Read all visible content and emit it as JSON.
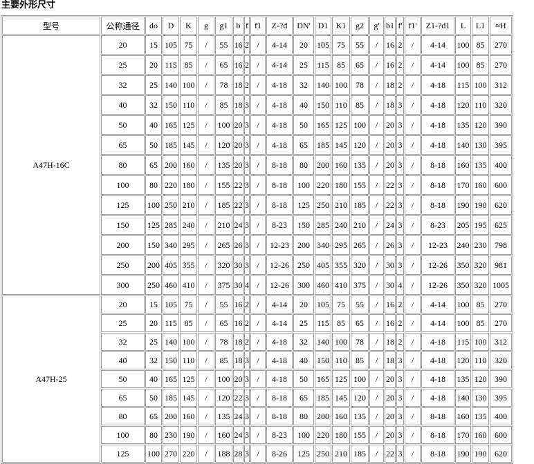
{
  "title": "主要外形尺寸",
  "table": {
    "headers": [
      "型号",
      "公称通径",
      "do",
      "D",
      "K",
      "g",
      "g1",
      "b",
      "f",
      "f1",
      "Z-?d",
      "DN'",
      "D1",
      "K1",
      "g2",
      "g'",
      "b1",
      "f'",
      "f1'",
      "Z1-?d1",
      "L",
      "L1",
      "≈H"
    ],
    "groups": [
      {
        "model": "A47H-16C",
        "rows": [
          [
            "20",
            "15",
            "105",
            "75",
            "/",
            "55",
            "16",
            "2",
            "/",
            "4-14",
            "20",
            "105",
            "75",
            "55",
            "/",
            "16",
            "2",
            "/",
            "4-14",
            "100",
            "85",
            "270"
          ],
          [
            "25",
            "20",
            "115",
            "85",
            "/",
            "65",
            "16",
            "2",
            "/",
            "4-14",
            "25",
            "115",
            "85",
            "65",
            "/",
            "16",
            "2",
            "/",
            "4-14",
            "100",
            "85",
            "270"
          ],
          [
            "32",
            "25",
            "140",
            "100",
            "/",
            "78",
            "18",
            "2",
            "/",
            "4-18",
            "32",
            "140",
            "100",
            "78",
            "/",
            "18",
            "2",
            "/",
            "4-18",
            "115",
            "100",
            "312"
          ],
          [
            "40",
            "32",
            "150",
            "110",
            "/",
            "85",
            "18",
            "3",
            "/",
            "4-18",
            "40",
            "150",
            "110",
            "85",
            "/",
            "18",
            "3",
            "/",
            "4-18",
            "120",
            "110",
            "320"
          ],
          [
            "50",
            "40",
            "165",
            "125",
            "/",
            "100",
            "20",
            "3",
            "/",
            "4-18",
            "50",
            "165",
            "125",
            "100",
            "/",
            "20",
            "3",
            "/",
            "4-18",
            "135",
            "120",
            "390"
          ],
          [
            "65",
            "50",
            "185",
            "145",
            "/",
            "120",
            "20",
            "3",
            "/",
            "4-18",
            "65",
            "185",
            "145",
            "120",
            "/",
            "20",
            "3",
            "/",
            "4-18",
            "140",
            "130",
            "395"
          ],
          [
            "80",
            "65",
            "200",
            "160",
            "/",
            "135",
            "20",
            "3",
            "/",
            "8-18",
            "80",
            "200",
            "160",
            "135",
            "/",
            "20",
            "3",
            "/",
            "8-18",
            "160",
            "135",
            "400"
          ],
          [
            "100",
            "80",
            "220",
            "180",
            "/",
            "155",
            "22",
            "3",
            "/",
            "8-18",
            "100",
            "220",
            "180",
            "155",
            "/",
            "22",
            "3",
            "/",
            "8-18",
            "170",
            "160",
            "600"
          ],
          [
            "125",
            "100",
            "250",
            "210",
            "/",
            "185",
            "22",
            "3",
            "/",
            "8-18",
            "125",
            "250",
            "210",
            "185",
            "/",
            "22",
            "3",
            "/",
            "8-18",
            "190",
            "190",
            "620"
          ],
          [
            "150",
            "125",
            "285",
            "240",
            "/",
            "210",
            "24",
            "3",
            "/",
            "8-23",
            "150",
            "285",
            "240",
            "210",
            "/",
            "24",
            "3",
            "/",
            "8-23",
            "205",
            "195",
            "625"
          ],
          [
            "200",
            "150",
            "340",
            "295",
            "/",
            "265",
            "26",
            "3",
            "/",
            "12-23",
            "200",
            "340",
            "295",
            "265",
            "/",
            "26",
            "3",
            "/",
            "12-23",
            "240",
            "230",
            "798"
          ],
          [
            "250",
            "200",
            "405",
            "355",
            "/",
            "320",
            "30",
            "3",
            "/",
            "12-26",
            "250",
            "405",
            "355",
            "320",
            "/",
            "30",
            "3",
            "/",
            "12-26",
            "350",
            "320",
            "981"
          ],
          [
            "300",
            "250",
            "460",
            "410",
            "/",
            "375",
            "30",
            "4",
            "/",
            "12-26",
            "300",
            "460",
            "410",
            "375",
            "/",
            "30",
            "4",
            "/",
            "12-26",
            "350",
            "320",
            "1005"
          ]
        ]
      },
      {
        "model": "A47H-25",
        "rows": [
          [
            "20",
            "15",
            "105",
            "75",
            "/",
            "55",
            "16",
            "2",
            "/",
            "4-14",
            "20",
            "105",
            "75",
            "55",
            "/",
            "16",
            "2",
            "/",
            "4-14",
            "100",
            "85",
            "270"
          ],
          [
            "25",
            "20",
            "115",
            "85",
            "/",
            "65",
            "16",
            "2",
            "/",
            "4-14",
            "25",
            "115",
            "85",
            "65",
            "/",
            "16",
            "2",
            "/",
            "4-14",
            "100",
            "85",
            "270"
          ],
          [
            "32",
            "25",
            "140",
            "100",
            "/",
            "78",
            "18",
            "2",
            "/",
            "4-18",
            "32",
            "140",
            "100",
            "78",
            "/",
            "18",
            "2",
            "/",
            "4-18",
            "115",
            "100",
            "312"
          ],
          [
            "40",
            "32",
            "150",
            "110",
            "/",
            "85",
            "18",
            "3",
            "/",
            "4-18",
            "40",
            "150",
            "110",
            "85",
            "/",
            "18",
            "3",
            "/",
            "4-18",
            "120",
            "110",
            "320"
          ],
          [
            "50",
            "40",
            "165",
            "125",
            "/",
            "100",
            "20",
            "3",
            "/",
            "4-18",
            "50",
            "165",
            "125",
            "100",
            "/",
            "20",
            "3",
            "/",
            "4-18",
            "135",
            "120",
            "390"
          ],
          [
            "65",
            "50",
            "185",
            "145",
            "/",
            "120",
            "22",
            "3",
            "/",
            "8-18",
            "65",
            "185",
            "145",
            "120",
            "/",
            "20",
            "3",
            "/",
            "4-18",
            "140",
            "130",
            "395"
          ],
          [
            "80",
            "65",
            "200",
            "160",
            "/",
            "135",
            "24",
            "3",
            "/",
            "8-18",
            "80",
            "200",
            "160",
            "135",
            "/",
            "20",
            "3",
            "/",
            "8-18",
            "160",
            "135",
            "400"
          ],
          [
            "100",
            "80",
            "230",
            "190",
            "/",
            "160",
            "24",
            "3",
            "/",
            "8-23",
            "100",
            "220",
            "180",
            "155",
            "/",
            "20",
            "3",
            "/",
            "8-18",
            "170",
            "160",
            "600"
          ],
          [
            "125",
            "100",
            "270",
            "220",
            "/",
            "188",
            "28",
            "3",
            "/",
            "8-26",
            "125",
            "250",
            "210",
            "185",
            "/",
            "22",
            "3",
            "/",
            "8-18",
            "190",
            "190",
            "620"
          ]
        ]
      }
    ]
  }
}
